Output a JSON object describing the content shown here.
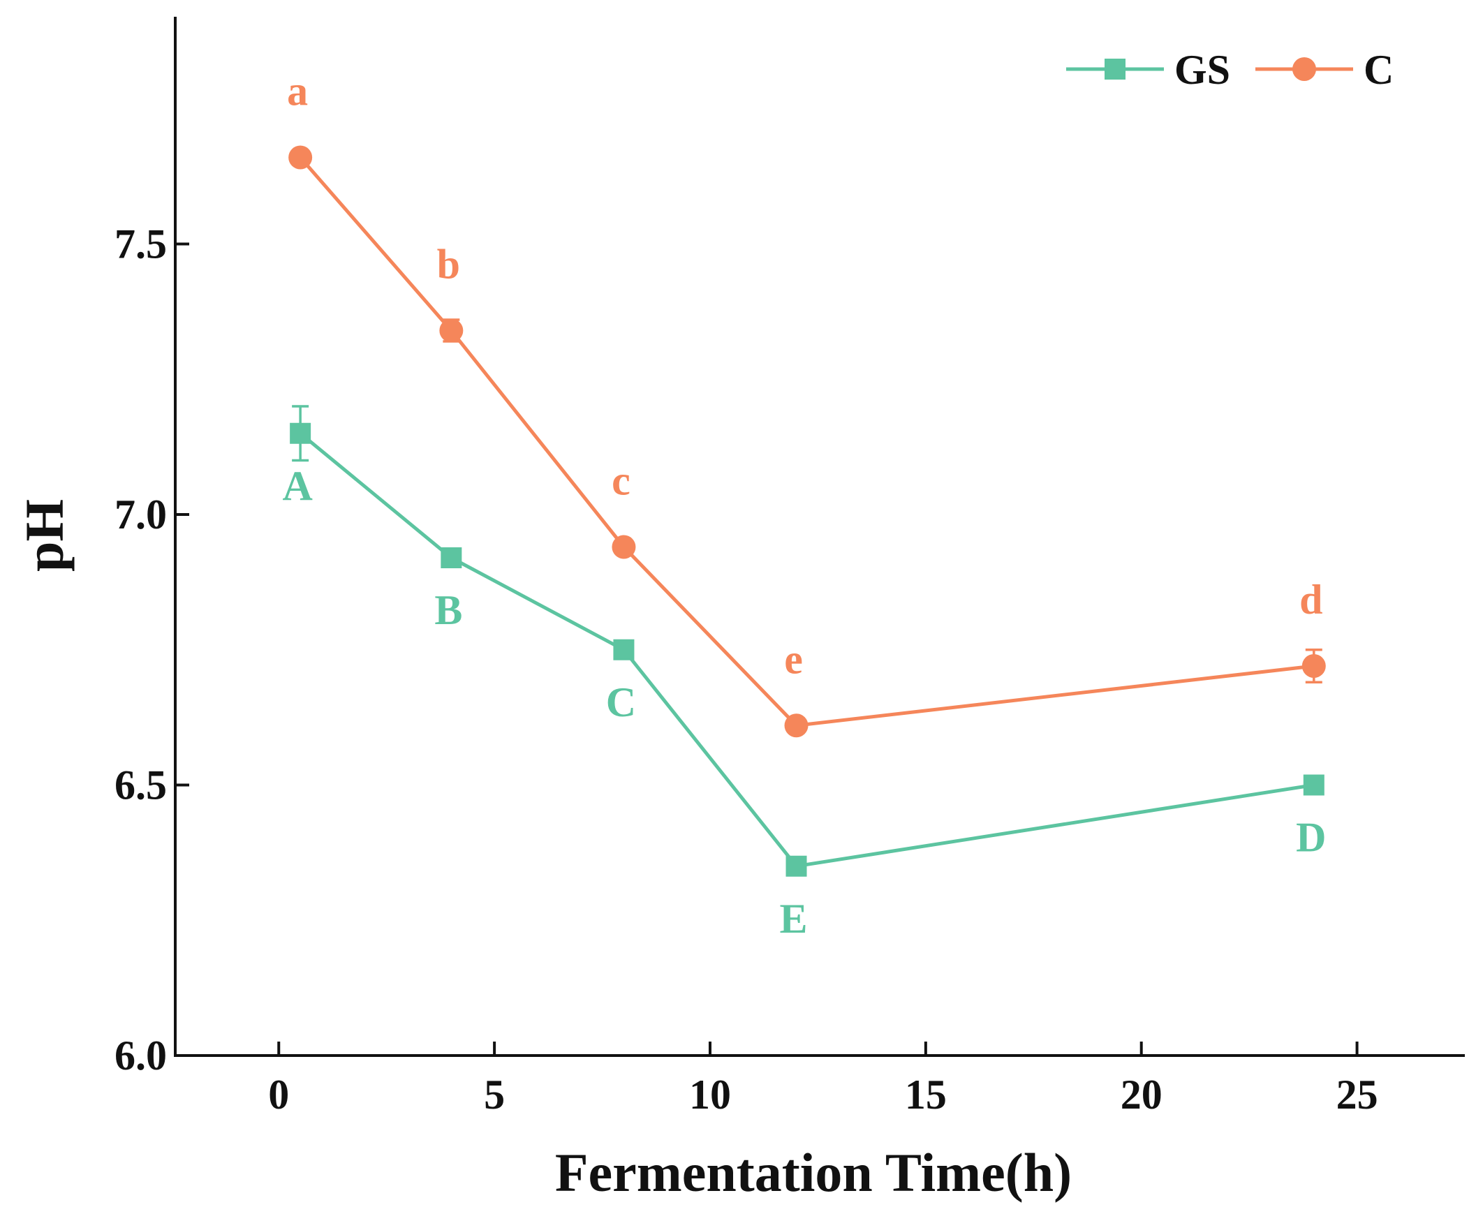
{
  "chart_data": {
    "type": "line",
    "title": "",
    "xlabel": "Fermentation Time(h)",
    "ylabel": "pH",
    "xlim": [
      -2.4,
      27.5
    ],
    "ylim": [
      6.0,
      7.92
    ],
    "xticks": [
      0,
      5,
      10,
      15,
      20,
      25
    ],
    "yticks": [
      6.0,
      6.5,
      7.0,
      7.5
    ],
    "xtick_labels": [
      "0",
      "5",
      "10",
      "15",
      "20",
      "25"
    ],
    "ytick_labels": [
      "6.0",
      "6.5",
      "7.0",
      "7.5"
    ],
    "grid": false,
    "legend_position": "top-right",
    "x": [
      0.5,
      4,
      8,
      12,
      24
    ],
    "series": [
      {
        "name": "GS",
        "color": "#5cc4a0",
        "marker": "square",
        "values": [
          7.15,
          6.92,
          6.75,
          6.35,
          6.5
        ],
        "errors": [
          0.05,
          0.01,
          0.01,
          0.01,
          0.01
        ],
        "point_labels": [
          "A",
          "B",
          "C",
          "E",
          "D"
        ],
        "label_side": "below"
      },
      {
        "name": "C",
        "color": "#f5865a",
        "marker": "circle",
        "values": [
          7.66,
          7.34,
          6.94,
          6.61,
          6.72
        ],
        "errors": [
          0.01,
          0.02,
          0.01,
          0.01,
          0.03
        ],
        "point_labels": [
          "a",
          "b",
          "c",
          "e",
          "d"
        ],
        "label_side": "above"
      }
    ]
  }
}
